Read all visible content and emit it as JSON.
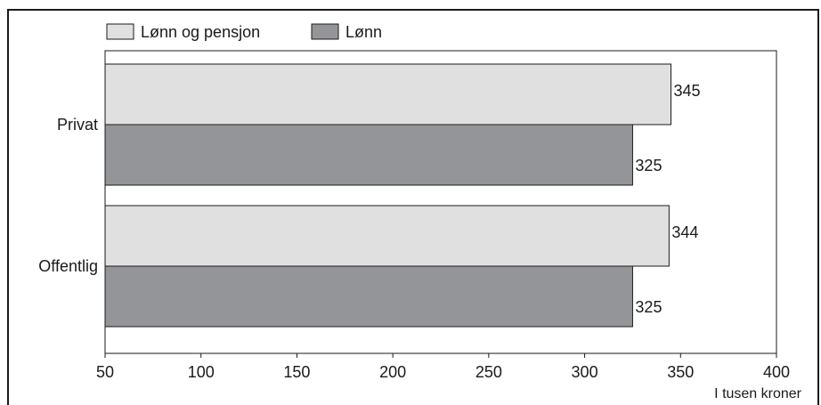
{
  "chart_data": {
    "type": "bar",
    "orientation": "horizontal",
    "categories": [
      "Privat",
      "Offentlig"
    ],
    "series": [
      {
        "name": "Lønn og pensjon",
        "values": [
          345,
          344
        ],
        "color": "#e0e0e0"
      },
      {
        "name": "Lønn",
        "values": [
          325,
          325
        ],
        "color": "#939598"
      }
    ],
    "xlim": [
      50,
      400
    ],
    "xticks": [
      50,
      100,
      150,
      200,
      250,
      300,
      350,
      400
    ],
    "xlabel": "I tusen kroner",
    "ylabel": "",
    "title": "",
    "legend_position": "top-left",
    "grid": false
  }
}
